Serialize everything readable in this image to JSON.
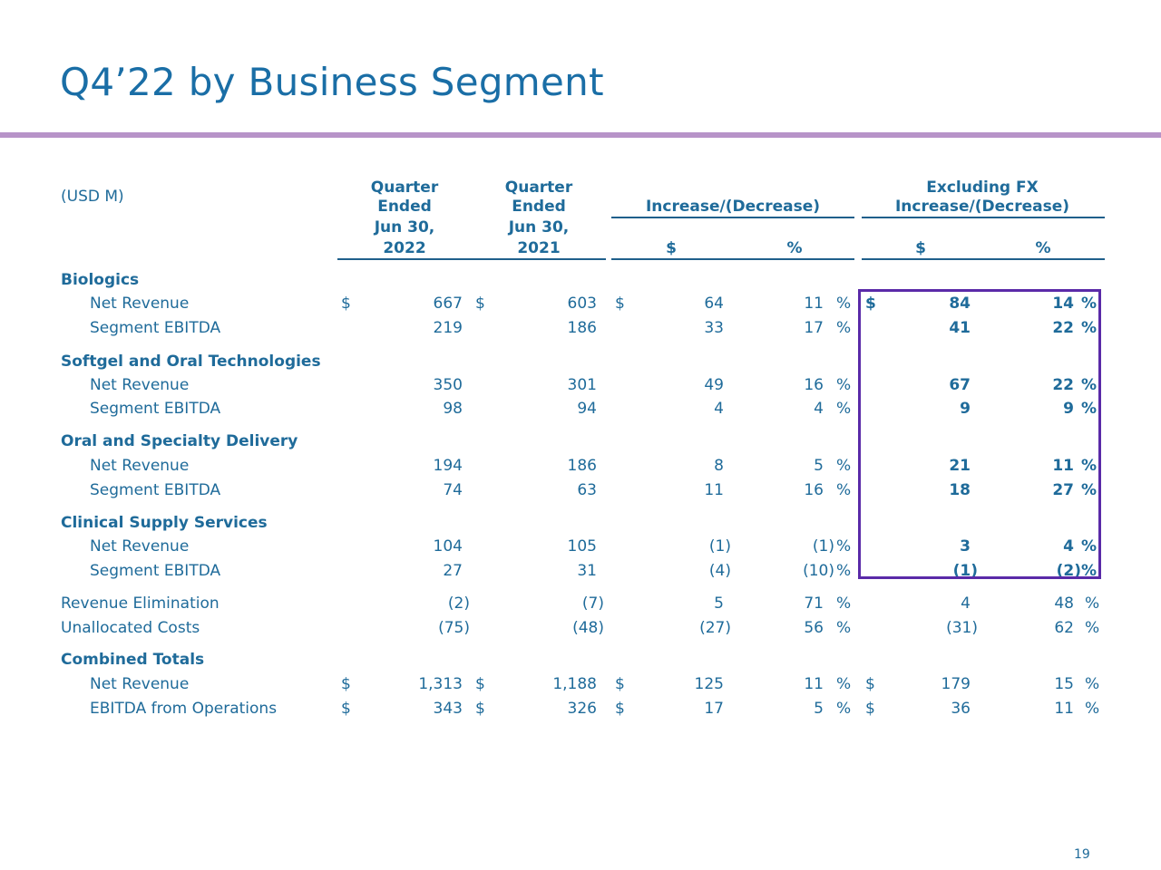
{
  "title": "Q4’22 by Business Segment",
  "units_label": "(USD M)",
  "headers": {
    "col1": [
      "Quarter",
      "Ended",
      "Jun 30,",
      "2022"
    ],
    "col2": [
      "Quarter",
      "Ended",
      "Jun 30,",
      "2021"
    ],
    "incdec": "Increase/(Decrease)",
    "fx_top": "Excluding FX",
    "fx_incdec": "Increase/(Decrease)",
    "dollar": "$",
    "pct": "%"
  },
  "sections": {
    "biologics": {
      "name": "Biologics",
      "net_revenue": {
        "label": "Net Revenue",
        "q22": "667",
        "q21": "603",
        "inc": "64",
        "incp": "11",
        "fx": "84",
        "fxp": "14"
      },
      "ebitda": {
        "label": "Segment EBITDA",
        "q22": "219",
        "q21": "186",
        "inc": "33",
        "incp": "17",
        "fx": "41",
        "fxp": "22"
      }
    },
    "softgel": {
      "name": "Softgel and Oral Technologies",
      "net_revenue": {
        "label": "Net Revenue",
        "q22": "350",
        "q21": "301",
        "inc": "49",
        "incp": "16",
        "fx": "67",
        "fxp": "22"
      },
      "ebitda": {
        "label": "Segment EBITDA",
        "q22": "98",
        "q21": "94",
        "inc": "4",
        "incp": "4",
        "fx": "9",
        "fxp": "9"
      }
    },
    "oral": {
      "name": "Oral and Specialty Delivery",
      "net_revenue": {
        "label": "Net Revenue",
        "q22": "194",
        "q21": "186",
        "inc": "8",
        "incp": "5",
        "fx": "21",
        "fxp": "11"
      },
      "ebitda": {
        "label": "Segment EBITDA",
        "q22": "74",
        "q21": "63",
        "inc": "11",
        "incp": "16",
        "fx": "18",
        "fxp": "27"
      }
    },
    "clinical": {
      "name": "Clinical Supply Services",
      "net_revenue": {
        "label": "Net Revenue",
        "q22": "104",
        "q21": "105",
        "inc": "(1)",
        "incp": "(1)",
        "fx": "3",
        "fxp": "4"
      },
      "ebitda": {
        "label": "Segment EBITDA",
        "q22": "27",
        "q21": "31",
        "inc": "(4)",
        "incp": "(10)",
        "fx": "(1)",
        "fxp": "(2)"
      }
    },
    "rev_elim": {
      "label": "Revenue Elimination",
      "q22": "(2)",
      "q21": "(7)",
      "inc": "5",
      "incp": "71",
      "fx": "4",
      "fxp": "48"
    },
    "unalloc": {
      "label": "Unallocated Costs",
      "q22": "(75)",
      "q21": "(48)",
      "inc": "(27)",
      "incp": "56",
      "fx": "(31)",
      "fxp": "62"
    },
    "combined": {
      "name": "Combined Totals",
      "net_revenue": {
        "label": "Net Revenue",
        "q22": "1,313",
        "q21": "1,188",
        "inc": "125",
        "incp": "11",
        "fx": "179",
        "fxp": "15"
      },
      "ebitda": {
        "label": "EBITDA from Operations",
        "q22": "343",
        "q21": "326",
        "inc": "17",
        "incp": "5",
        "fx": "36",
        "fxp": "11"
      }
    }
  },
  "page_number": "19"
}
